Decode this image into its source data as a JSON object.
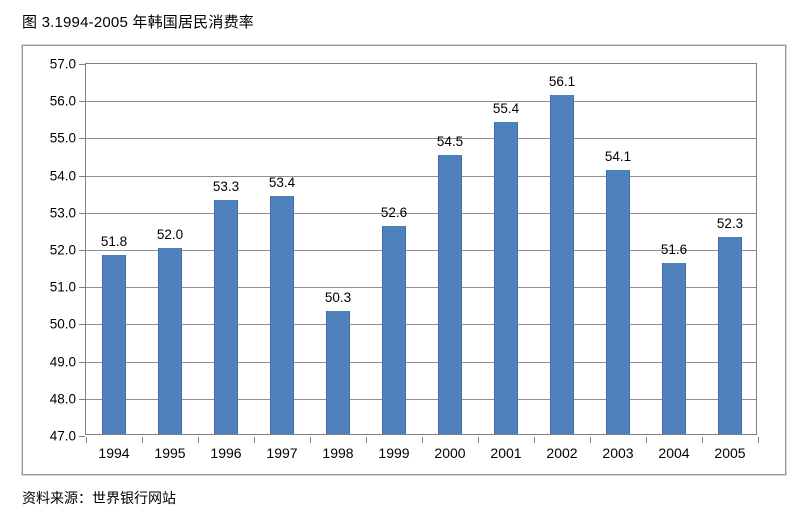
{
  "title": "图 3.1994-2005 年韩国居民消费率",
  "source": "资料来源：世界银行网站",
  "chart_data": {
    "type": "bar",
    "title": "图 3.1994-2005 年韩国居民消费率",
    "categories": [
      "1994",
      "1995",
      "1996",
      "1997",
      "1998",
      "1999",
      "2000",
      "2001",
      "2002",
      "2003",
      "2004",
      "2005"
    ],
    "values": [
      51.8,
      52.0,
      53.3,
      53.4,
      50.3,
      52.6,
      54.5,
      55.4,
      56.1,
      54.1,
      51.6,
      52.3
    ],
    "value_labels": [
      "51.8",
      "52.0",
      "53.3",
      "53.4",
      "50.3",
      "52.6",
      "54.5",
      "55.4",
      "56.1",
      "54.1",
      "51.6",
      "52.3"
    ],
    "xlabel": "",
    "ylabel": "",
    "ylim": [
      47.0,
      57.0
    ],
    "ytick_step": 1.0,
    "yticks": [
      "57.0",
      "56.0",
      "55.0",
      "54.0",
      "53.0",
      "52.0",
      "51.0",
      "50.0",
      "49.0",
      "48.0",
      "47.0"
    ],
    "grid": "horizontal",
    "legend": "none",
    "data_labels": true,
    "colors": {
      "bar_fill": "#4f81bd",
      "bar_edge": "#416ea9",
      "gridline": "#8e8e8e",
      "frame_border": "#979797",
      "text": "#000000"
    },
    "source": "资料来源：世界银行网站"
  }
}
